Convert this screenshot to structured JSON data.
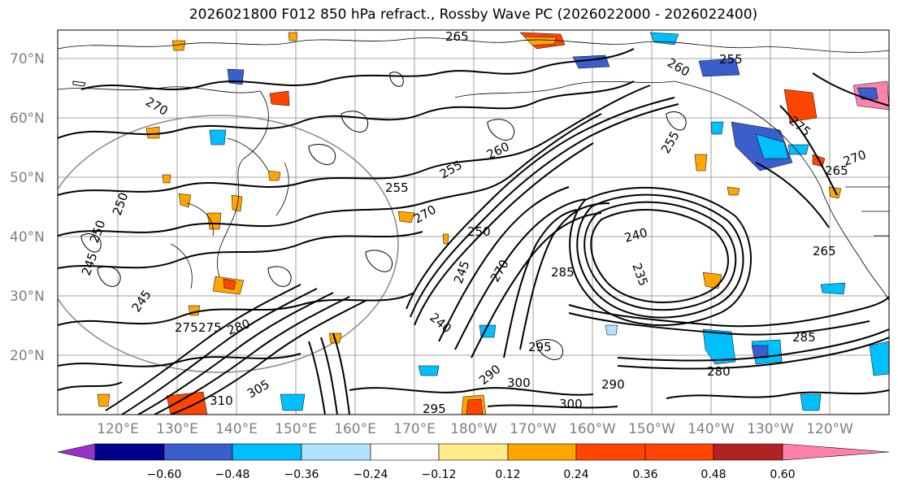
{
  "title": "2026021800 F012 850 hPa refract., Rossby Wave PC (2026022000 - 2026022400)",
  "map": {
    "lat_labels": [
      "70°N",
      "60°N",
      "50°N",
      "40°N",
      "30°N",
      "20°N"
    ],
    "lon_labels": [
      "120°E",
      "130°E",
      "140°E",
      "150°E",
      "160°E",
      "170°E",
      "180°W",
      "170°W",
      "160°W",
      "150°W",
      "140°W",
      "130°W",
      "120°W"
    ],
    "contour_labels": [
      "265",
      "260",
      "255",
      "270",
      "275",
      "260",
      "255",
      "255",
      "265",
      "255",
      "250",
      "270",
      "240",
      "235",
      "265",
      "250",
      "245",
      "285",
      "280",
      "275",
      "245",
      "270",
      "240",
      "295",
      "290",
      "300",
      "300",
      "295",
      "310",
      "305",
      "275",
      "280",
      "285",
      "250",
      "245",
      "270",
      "290"
    ]
  },
  "colorbar": {
    "colors": [
      "#9932cc",
      "#00008b",
      "#3a5fcd",
      "#00bfff",
      "#b0e2ff",
      "#ffffff",
      "#ffec8b",
      "#ffa500",
      "#ff4500",
      "#b22222",
      "#ff82ab"
    ],
    "tick_labels": [
      "−0.60",
      "−0.48",
      "−0.36",
      "−0.24",
      "−0.12",
      "0.12",
      "0.24",
      "0.36",
      "0.48",
      "0.60"
    ]
  }
}
